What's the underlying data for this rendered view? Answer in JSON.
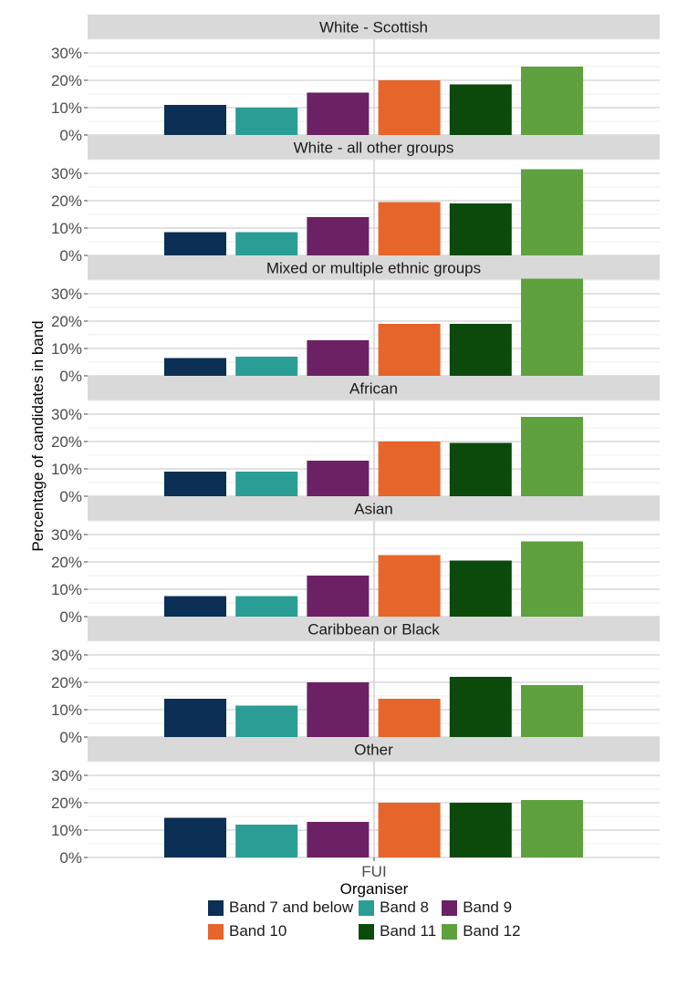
{
  "chart_data": {
    "type": "bar",
    "x_category": "FUI",
    "xlabel": "Organiser",
    "ylabel": "Percentage of candidates in band",
    "ylim": [
      0,
      35
    ],
    "y_ticks": [
      "0%",
      "10%",
      "20%",
      "30%"
    ],
    "y_tick_values": [
      0,
      10,
      20,
      30
    ],
    "grid": true,
    "legend_position": "bottom",
    "series": [
      {
        "name": "Band 7 and below",
        "color": "#0b2f55"
      },
      {
        "name": "Band 8",
        "color": "#2a9d94"
      },
      {
        "name": "Band 9",
        "color": "#6b2163"
      },
      {
        "name": "Band 10",
        "color": "#e5652a"
      },
      {
        "name": "Band 11",
        "color": "#0c4a0c"
      },
      {
        "name": "Band 12",
        "color": "#5fa13f"
      }
    ],
    "panels": [
      {
        "title": "White - Scottish",
        "values": [
          11,
          10,
          15.5,
          20,
          18.5,
          25
        ]
      },
      {
        "title": "White - all other groups",
        "values": [
          8.5,
          8.5,
          14,
          19.5,
          19,
          31.5
        ]
      },
      {
        "title": "Mixed or multiple ethnic groups",
        "values": [
          6.5,
          7,
          13,
          19,
          19,
          35.5
        ]
      },
      {
        "title": "African",
        "values": [
          9,
          9,
          13,
          20,
          19.5,
          29
        ]
      },
      {
        "title": "Asian",
        "values": [
          7.5,
          7.5,
          15,
          22.5,
          20.5,
          27.5
        ]
      },
      {
        "title": "Caribbean or Black",
        "values": [
          14,
          11.5,
          20,
          14,
          22,
          19
        ]
      },
      {
        "title": "Other",
        "values": [
          14.5,
          12,
          13,
          20,
          20,
          21
        ]
      }
    ]
  }
}
